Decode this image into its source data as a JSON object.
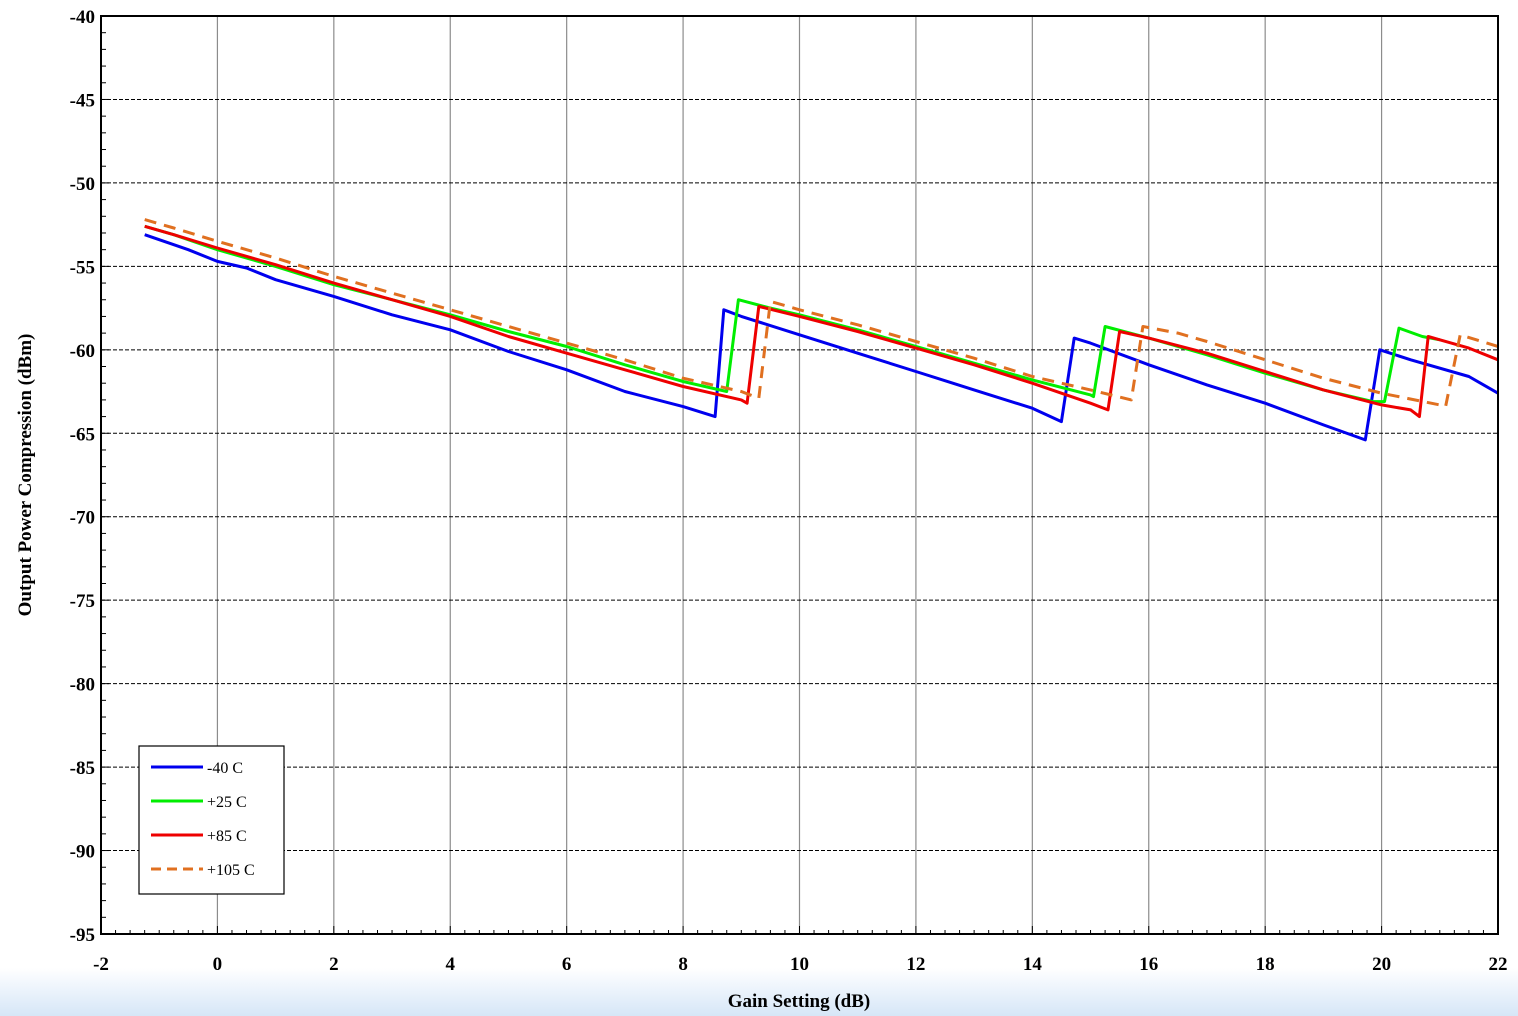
{
  "chart_data": {
    "type": "line",
    "title": "",
    "xlabel": "Gain Setting (dB)",
    "ylabel": "Output Power Compression (dBm)",
    "xlim": [
      -2,
      22
    ],
    "ylim": [
      -95,
      -40
    ],
    "xticks": [
      -2,
      0,
      2,
      4,
      6,
      8,
      10,
      12,
      14,
      16,
      18,
      20,
      22
    ],
    "yticks": [
      -95,
      -90,
      -85,
      -80,
      -75,
      -70,
      -65,
      -60,
      -55,
      -50,
      -45,
      -40
    ],
    "xtick_labels": [
      "-2",
      "0",
      "2",
      "4",
      "6",
      "8",
      "10",
      "12",
      "14",
      "16",
      "18",
      "20",
      "22"
    ],
    "ytick_labels": [
      "-95",
      "-90",
      "-85",
      "-80",
      "-75",
      "-70",
      "-65",
      "-60",
      "-55",
      "-50",
      "-45",
      "-40"
    ],
    "grid": {
      "vertical": "solid",
      "horizontal": "dashed"
    },
    "legend_position": "bottom-left",
    "series": [
      {
        "name": "-40 C",
        "color": "#0000ee",
        "dash": "solid",
        "points": [
          [
            -1.25,
            -53.1
          ],
          [
            -0.75,
            -53.7
          ],
          [
            -0.5,
            -54.0
          ],
          [
            0,
            -54.7
          ],
          [
            0.5,
            -55.1
          ],
          [
            1,
            -55.8
          ],
          [
            2,
            -56.8
          ],
          [
            3,
            -57.9
          ],
          [
            4,
            -58.8
          ],
          [
            5,
            -60.1
          ],
          [
            6,
            -61.2
          ],
          [
            7,
            -62.5
          ],
          [
            8,
            -63.4
          ],
          [
            8.55,
            -64.0
          ],
          [
            8.7,
            -57.6
          ],
          [
            9,
            -58.0
          ],
          [
            10,
            -59.1
          ],
          [
            11,
            -60.2
          ],
          [
            12,
            -61.3
          ],
          [
            13,
            -62.4
          ],
          [
            14,
            -63.5
          ],
          [
            14.5,
            -64.3
          ],
          [
            14.72,
            -59.3
          ],
          [
            15,
            -59.6
          ],
          [
            16,
            -60.9
          ],
          [
            17,
            -62.1
          ],
          [
            18,
            -63.2
          ],
          [
            19,
            -64.5
          ],
          [
            19.72,
            -65.4
          ],
          [
            19.97,
            -60.0
          ],
          [
            20.5,
            -60.6
          ],
          [
            21.5,
            -61.6
          ],
          [
            22,
            -62.6
          ]
        ]
      },
      {
        "name": "+25 C",
        "color": "#00ee00",
        "dash": "solid",
        "points": [
          [
            -1.25,
            -52.6
          ],
          [
            -0.75,
            -53.1
          ],
          [
            0,
            -54.0
          ],
          [
            1,
            -55.0
          ],
          [
            2,
            -56.1
          ],
          [
            3,
            -57.0
          ],
          [
            4,
            -57.9
          ],
          [
            5,
            -58.9
          ],
          [
            6,
            -59.8
          ],
          [
            7,
            -60.9
          ],
          [
            8,
            -61.9
          ],
          [
            8.75,
            -62.5
          ],
          [
            8.95,
            -57.0
          ],
          [
            9.5,
            -57.5
          ],
          [
            10,
            -57.9
          ],
          [
            11,
            -58.8
          ],
          [
            12,
            -59.8
          ],
          [
            13,
            -60.8
          ],
          [
            14,
            -61.8
          ],
          [
            15,
            -62.7
          ],
          [
            15.05,
            -62.8
          ],
          [
            15.25,
            -58.6
          ],
          [
            16,
            -59.3
          ],
          [
            17,
            -60.3
          ],
          [
            18,
            -61.4
          ],
          [
            19,
            -62.4
          ],
          [
            19.85,
            -63.1
          ],
          [
            20.05,
            -63.1
          ],
          [
            20.3,
            -58.7
          ],
          [
            20.7,
            -59.2
          ],
          [
            21,
            -59.4
          ]
        ]
      },
      {
        "name": "+85 C",
        "color": "#ee0000",
        "dash": "solid",
        "points": [
          [
            -1.25,
            -52.6
          ],
          [
            -0.75,
            -53.1
          ],
          [
            0,
            -53.9
          ],
          [
            1,
            -54.9
          ],
          [
            2,
            -56.0
          ],
          [
            3,
            -57.0
          ],
          [
            4,
            -58.0
          ],
          [
            5,
            -59.2
          ],
          [
            6,
            -60.2
          ],
          [
            7,
            -61.2
          ],
          [
            8,
            -62.2
          ],
          [
            9,
            -63.0
          ],
          [
            9.1,
            -63.2
          ],
          [
            9.3,
            -57.4
          ],
          [
            10,
            -58.0
          ],
          [
            11,
            -58.9
          ],
          [
            12,
            -59.9
          ],
          [
            13,
            -60.9
          ],
          [
            14,
            -62.0
          ],
          [
            15,
            -63.2
          ],
          [
            15.3,
            -63.6
          ],
          [
            15.5,
            -58.9
          ],
          [
            16,
            -59.3
          ],
          [
            17,
            -60.2
          ],
          [
            18,
            -61.3
          ],
          [
            19,
            -62.4
          ],
          [
            20,
            -63.3
          ],
          [
            20.5,
            -63.6
          ],
          [
            20.65,
            -64.0
          ],
          [
            20.8,
            -59.2
          ],
          [
            21,
            -59.4
          ],
          [
            21.5,
            -59.9
          ],
          [
            22,
            -60.6
          ]
        ]
      },
      {
        "name": "+105 C",
        "color": "#e07020",
        "dash": "dashed",
        "points": [
          [
            -1.25,
            -52.2
          ],
          [
            -0.75,
            -52.7
          ],
          [
            0,
            -53.5
          ],
          [
            1,
            -54.5
          ],
          [
            2,
            -55.6
          ],
          [
            3,
            -56.6
          ],
          [
            4,
            -57.6
          ],
          [
            5,
            -58.6
          ],
          [
            6,
            -59.6
          ],
          [
            7,
            -60.6
          ],
          [
            8,
            -61.7
          ],
          [
            9,
            -62.5
          ],
          [
            9.3,
            -62.9
          ],
          [
            9.5,
            -57.1
          ],
          [
            10,
            -57.6
          ],
          [
            11,
            -58.5
          ],
          [
            12,
            -59.5
          ],
          [
            13,
            -60.5
          ],
          [
            14,
            -61.6
          ],
          [
            15,
            -62.4
          ],
          [
            15.7,
            -63.0
          ],
          [
            15.9,
            -58.6
          ],
          [
            16.5,
            -59.0
          ],
          [
            17,
            -59.5
          ],
          [
            18,
            -60.6
          ],
          [
            19,
            -61.7
          ],
          [
            20,
            -62.6
          ],
          [
            21,
            -63.3
          ],
          [
            21.1,
            -63.4
          ],
          [
            21.35,
            -59.1
          ],
          [
            22,
            -59.8
          ]
        ]
      }
    ]
  }
}
